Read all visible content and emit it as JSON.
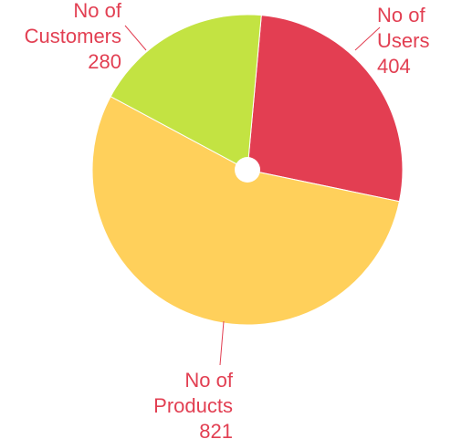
{
  "chart_data": {
    "type": "pie",
    "title": "",
    "legend": "none",
    "slices": [
      {
        "name": "No of Users",
        "label_lines": [
          "No of",
          "Users"
        ],
        "value": 404,
        "value_text": "404",
        "color": "#e33e52"
      },
      {
        "name": "No of Products",
        "label_lines": [
          "No of",
          "Products"
        ],
        "value": 821,
        "value_text": "821",
        "color": "#ffd05b"
      },
      {
        "name": "No of Customers",
        "label_lines": [
          "No of",
          "Customers"
        ],
        "value": 280,
        "value_text": "280",
        "color": "#c3e342"
      }
    ],
    "label_color": "#e23f52",
    "center_hole_color": "#ffffff"
  }
}
